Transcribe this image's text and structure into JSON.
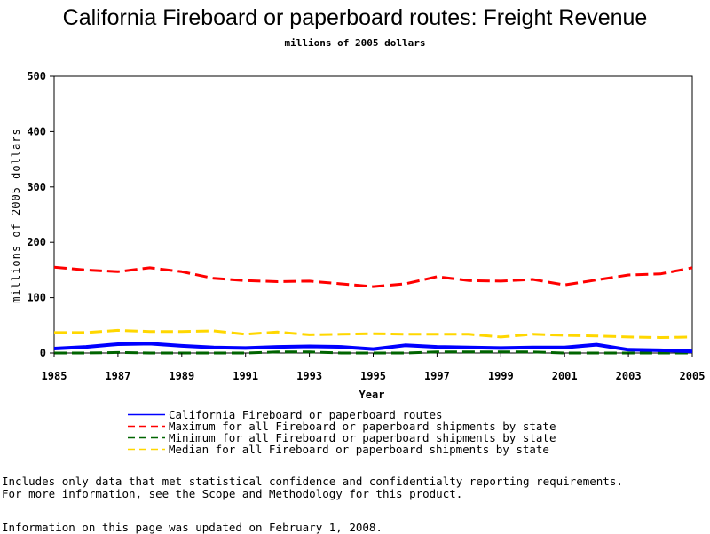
{
  "chart_data": {
    "type": "line",
    "title": "California Fireboard or paperboard routes: Freight Revenue",
    "subtitle": "millions of 2005 dollars",
    "xlabel": "Year",
    "ylabel": "millions of 2005 dollars",
    "xlim": [
      1985,
      2005
    ],
    "ylim": [
      0,
      500
    ],
    "xticks": [
      "1985",
      "1987",
      "1989",
      "1991",
      "1993",
      "1995",
      "1997",
      "1999",
      "2001",
      "2003",
      "2005"
    ],
    "yticks": [
      "0",
      "100",
      "200",
      "300",
      "400",
      "500"
    ],
    "grid": false,
    "legend_position": "bottom",
    "x": [
      1985,
      1986,
      1987,
      1988,
      1989,
      1990,
      1991,
      1992,
      1993,
      1994,
      1995,
      1996,
      1997,
      1998,
      1999,
      2000,
      2001,
      2002,
      2003,
      2004,
      2005
    ],
    "series": [
      {
        "name": "California Fireboard or paperboard routes",
        "color": "#0000ff",
        "style": "solid",
        "values": [
          8,
          11,
          16,
          17,
          13,
          10,
          9,
          11,
          12,
          11,
          7,
          14,
          11,
          10,
          9,
          10,
          10,
          15,
          6,
          5,
          3
        ]
      },
      {
        "name": "Maximum for all Fireboard or paperboard shipments by state",
        "color": "#ff0000",
        "style": "dashed",
        "values": [
          155,
          150,
          147,
          154,
          147,
          135,
          131,
          129,
          130,
          125,
          120,
          125,
          138,
          131,
          130,
          133,
          123,
          132,
          141,
          143,
          154
        ]
      },
      {
        "name": "Minimum for all Fireboard or paperboard shipments by state",
        "color": "#006400",
        "style": "dashed",
        "values": [
          0,
          0,
          1,
          0,
          0,
          0,
          0,
          2,
          2,
          0,
          0,
          0,
          2,
          2,
          2,
          2,
          0,
          0,
          0,
          0,
          0
        ]
      },
      {
        "name": "Median for all Fireboard or paperboard shipments by state",
        "color": "#ffd700",
        "style": "dashed",
        "values": [
          37,
          37,
          41,
          39,
          39,
          40,
          34,
          38,
          33,
          34,
          35,
          34,
          34,
          34,
          29,
          34,
          32,
          31,
          29,
          28,
          29
        ]
      }
    ]
  },
  "notes": [
    "Includes only data that met statistical confidence and confidentialty reporting requirements.",
    "For more information, see the Scope and Methodology for this product."
  ],
  "updated": "Information on this page was updated on February 1, 2008."
}
